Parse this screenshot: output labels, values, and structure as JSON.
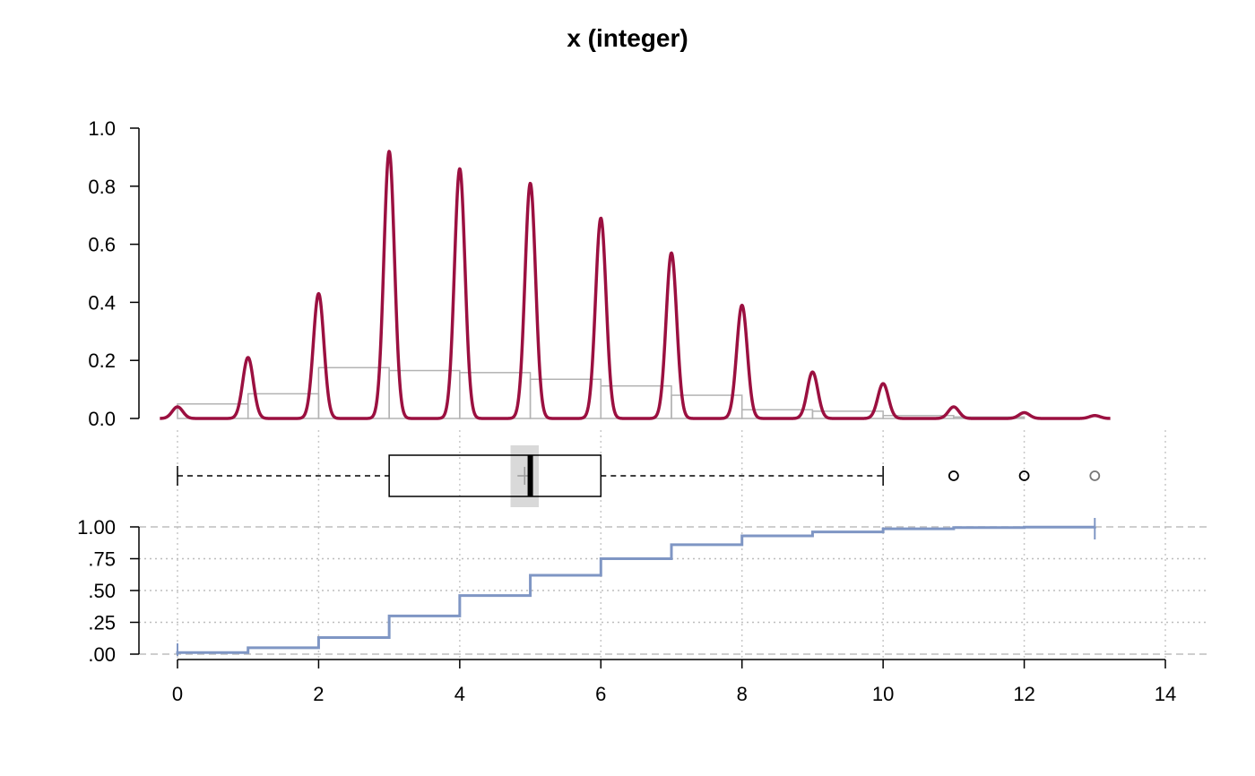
{
  "chart_data": {
    "title": "x (integer)",
    "type": "composite",
    "density": {
      "type": "line",
      "ylim": [
        0,
        1.0
      ],
      "yticks": [
        "0.0",
        "0.2",
        "0.4",
        "0.6",
        "0.8",
        "1.0"
      ],
      "ytick_values": [
        0,
        0.2,
        0.4,
        0.6,
        0.8,
        1.0
      ],
      "peaks": [
        {
          "x": 0,
          "y": 0.04
        },
        {
          "x": 1,
          "y": 0.21
        },
        {
          "x": 2,
          "y": 0.43
        },
        {
          "x": 3,
          "y": 0.92
        },
        {
          "x": 4,
          "y": 0.86
        },
        {
          "x": 5,
          "y": 0.81
        },
        {
          "x": 6,
          "y": 0.69
        },
        {
          "x": 7,
          "y": 0.57
        },
        {
          "x": 8,
          "y": 0.39
        },
        {
          "x": 9,
          "y": 0.16
        },
        {
          "x": 10,
          "y": 0.12
        },
        {
          "x": 11,
          "y": 0.04
        },
        {
          "x": 12,
          "y": 0.02
        },
        {
          "x": 13,
          "y": 0.01
        }
      ],
      "color": "#9b1040"
    },
    "histogram": {
      "type": "bar",
      "bins": [
        {
          "from": 0,
          "to": 1,
          "y": 0.05
        },
        {
          "from": 1,
          "to": 2,
          "y": 0.085
        },
        {
          "from": 2,
          "to": 3,
          "y": 0.175
        },
        {
          "from": 3,
          "to": 4,
          "y": 0.165
        },
        {
          "from": 4,
          "to": 5,
          "y": 0.158
        },
        {
          "from": 5,
          "to": 6,
          "y": 0.135
        },
        {
          "from": 6,
          "to": 7,
          "y": 0.112
        },
        {
          "from": 7,
          "to": 8,
          "y": 0.08
        },
        {
          "from": 8,
          "to": 9,
          "y": 0.03
        },
        {
          "from": 9,
          "to": 10,
          "y": 0.025
        },
        {
          "from": 10,
          "to": 11,
          "y": 0.01
        },
        {
          "from": 11,
          "to": 12,
          "y": 0.005
        }
      ],
      "color": "#b3b3b3"
    },
    "boxplot": {
      "whisker_low": 0,
      "q1": 3,
      "median": 5,
      "q3": 6,
      "whisker_high": 10,
      "mean": 4.92,
      "mean_ci": [
        4.72,
        5.12
      ],
      "outliers": [
        11,
        12,
        13
      ]
    },
    "ecdf": {
      "type": "step",
      "ylim": [
        0,
        1.0
      ],
      "yticks": [
        ".00",
        ".25",
        ".50",
        ".75",
        "1.00"
      ],
      "ytick_values": [
        0,
        0.25,
        0.5,
        0.75,
        1.0
      ],
      "steps": [
        {
          "x": 0,
          "y": 0.012
        },
        {
          "x": 1,
          "y": 0.05
        },
        {
          "x": 2,
          "y": 0.13
        },
        {
          "x": 3,
          "y": 0.3
        },
        {
          "x": 4,
          "y": 0.46
        },
        {
          "x": 5,
          "y": 0.62
        },
        {
          "x": 6,
          "y": 0.75
        },
        {
          "x": 7,
          "y": 0.86
        },
        {
          "x": 8,
          "y": 0.93
        },
        {
          "x": 9,
          "y": 0.96
        },
        {
          "x": 10,
          "y": 0.985
        },
        {
          "x": 11,
          "y": 0.995
        },
        {
          "x": 12,
          "y": 0.998
        },
        {
          "x": 13,
          "y": 1.0
        }
      ],
      "color": "#7f96c4"
    },
    "xaxis": {
      "xlim": [
        -0.3,
        14
      ],
      "ticks": [
        "0",
        "2",
        "4",
        "6",
        "8",
        "10",
        "12",
        "14"
      ],
      "tick_values": [
        0,
        2,
        4,
        6,
        8,
        10,
        12,
        14
      ],
      "grid": true
    }
  }
}
